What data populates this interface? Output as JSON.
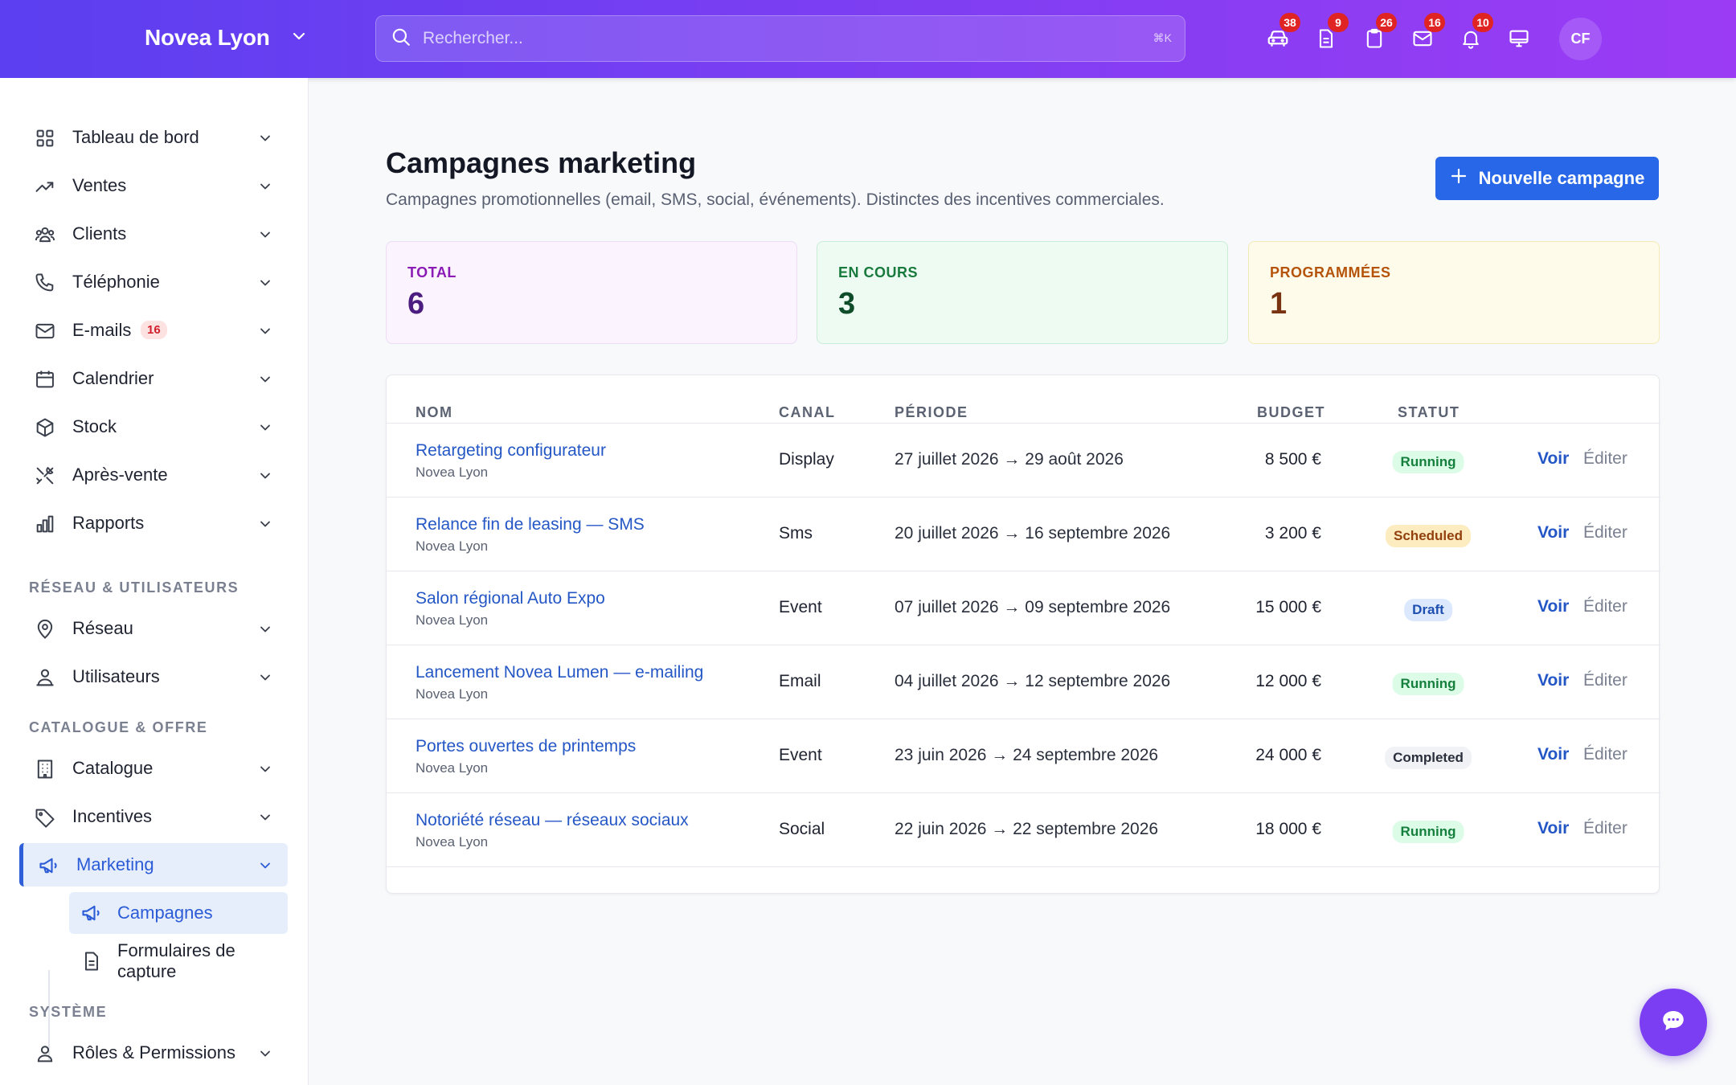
{
  "header": {
    "brand": "Novea Lyon",
    "search_placeholder": "Rechercher...",
    "search_shortcut": "⌘K",
    "icons": [
      {
        "name": "car-icon",
        "badge": "38"
      },
      {
        "name": "document-icon",
        "badge": "9"
      },
      {
        "name": "clipboard-icon",
        "badge": "26"
      },
      {
        "name": "mail-icon",
        "badge": "16"
      },
      {
        "name": "bell-icon",
        "badge": "10"
      },
      {
        "name": "monitor-icon",
        "badge": ""
      }
    ],
    "avatar_initials": "CF"
  },
  "sidebar": {
    "items": [
      {
        "label": "Tableau de bord",
        "icon": "grid-icon"
      },
      {
        "label": "Ventes",
        "icon": "trend-icon"
      },
      {
        "label": "Clients",
        "icon": "users-icon"
      },
      {
        "label": "Téléphonie",
        "icon": "phone-icon"
      },
      {
        "label": "E-mails",
        "icon": "mail-icon",
        "badge": "16"
      },
      {
        "label": "Calendrier",
        "icon": "calendar-icon"
      },
      {
        "label": "Stock",
        "icon": "box-icon"
      },
      {
        "label": "Après-vente",
        "icon": "tools-icon"
      },
      {
        "label": "Rapports",
        "icon": "chart-icon"
      }
    ],
    "section_network": "RÉSEAU & UTILISATEURS",
    "network_items": [
      {
        "label": "Réseau",
        "icon": "pin-icon"
      },
      {
        "label": "Utilisateurs",
        "icon": "user-group-icon"
      }
    ],
    "section_catalog": "CATALOGUE & OFFRE",
    "catalog_items": [
      {
        "label": "Catalogue",
        "icon": "building-icon"
      },
      {
        "label": "Incentives",
        "icon": "tag-icon"
      },
      {
        "label": "Marketing",
        "icon": "megaphone-icon"
      }
    ],
    "sub_items": [
      {
        "label": "Campagnes",
        "icon": "megaphone-icon"
      },
      {
        "label": "Formulaires de capture",
        "icon": "document-icon"
      }
    ],
    "section_system": "SYSTÈME",
    "system_items": [
      {
        "label": "Rôles & Permissions",
        "icon": "user-icon"
      }
    ]
  },
  "main": {
    "title": "Campagnes marketing",
    "subtitle": "Campagnes promotionnelles (email, SMS, social, événements). Distinctes des incentives commerciales.",
    "new_button": "Nouvelle campagne",
    "stats": [
      {
        "label": "TOTAL",
        "value": "6",
        "bg": "#fbf4fe",
        "border": "#ecdcf6",
        "label_color": "#8a1bb5",
        "value_color": "#4c1d80"
      },
      {
        "label": "EN COURS",
        "value": "3",
        "bg": "#eefbf3",
        "border": "#c9ecd7",
        "label_color": "#187a3c",
        "value_color": "#0f4d2a"
      },
      {
        "label": "PROGRAMMÉES",
        "value": "1",
        "bg": "#fefbea",
        "border": "#f6e9b8",
        "label_color": "#b45309",
        "value_color": "#7a3310"
      }
    ],
    "table": {
      "headers": {
        "nom": "NOM",
        "canal": "CANAL",
        "periode": "PÉRIODE",
        "budget": "BUDGET",
        "statut": "STATUT"
      },
      "action_view": "Voir",
      "action_edit": "Éditer",
      "rows": [
        {
          "name": "Retargeting configurateur",
          "site": "Novea Lyon",
          "canal": "Display",
          "period": "27 juillet 2026 → 29 août 2026",
          "budget": "8 500 €",
          "status": "Running"
        },
        {
          "name": "Relance fin de leasing — SMS",
          "site": "Novea Lyon",
          "canal": "Sms",
          "period": "20 juillet 2026 → 16 septembre 2026",
          "budget": "3 200 €",
          "status": "Scheduled"
        },
        {
          "name": "Salon régional Auto Expo",
          "site": "Novea Lyon",
          "canal": "Event",
          "period": "07 juillet 2026 → 09 septembre 2026",
          "budget": "15 000 €",
          "status": "Draft"
        },
        {
          "name": "Lancement Novea Lumen — e-mailing",
          "site": "Novea Lyon",
          "canal": "Email",
          "period": "04 juillet 2026 → 12 septembre 2026",
          "budget": "12 000 €",
          "status": "Running"
        },
        {
          "name": "Portes ouvertes de printemps",
          "site": "Novea Lyon",
          "canal": "Event",
          "period": "23 juin 2026 → 24 septembre 2026",
          "budget": "24 000 €",
          "status": "Completed"
        },
        {
          "name": "Notoriété réseau — réseaux sociaux",
          "site": "Novea Lyon",
          "canal": "Social",
          "period": "22 juin 2026 → 22 septembre 2026",
          "budget": "18 000 €",
          "status": "Running"
        }
      ]
    },
    "status_colors": {
      "Running": {
        "bg": "#dcfce7",
        "fg": "#15803d"
      },
      "Scheduled": {
        "bg": "#fdecc0",
        "fg": "#92400e"
      },
      "Draft": {
        "bg": "#dbe8fd",
        "fg": "#1e4fb0"
      },
      "Completed": {
        "bg": "#f1f2f5",
        "fg": "#2a2f3c"
      }
    }
  }
}
